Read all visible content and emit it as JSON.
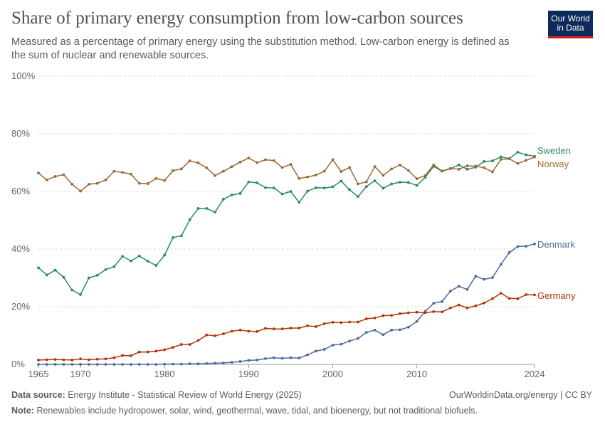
{
  "header": {
    "title": "Share of primary energy consumption from low-carbon sources",
    "subtitle": "Measured as a percentage of primary energy using the substitution method. Low-carbon energy is defined as the sum of nuclear and renewable sources.",
    "logo_line1": "Our World",
    "logo_line2": "in Data"
  },
  "footer": {
    "source_label": "Data source:",
    "source_text": "Energy Institute - Statistical Review of World Energy (2025)",
    "url": "OurWorldinData.org/energy | CC BY",
    "note_label": "Note:",
    "note_text": "Renewables include hydropower, solar, wind, geothermal, wave, tidal, and bioenergy, but not traditional biofuels."
  },
  "chart_data": {
    "type": "line",
    "title": "Share of primary energy consumption from low-carbon sources",
    "xlabel": "",
    "ylabel": "",
    "xlim": [
      1965,
      2024
    ],
    "ylim": [
      0,
      100
    ],
    "x_ticks": [
      1965,
      1970,
      1980,
      1990,
      2000,
      2010,
      2024
    ],
    "y_ticks": [
      0,
      20,
      40,
      60,
      80,
      100
    ],
    "y_tick_labels": [
      "0%",
      "20%",
      "40%",
      "60%",
      "80%",
      "100%"
    ],
    "grid": "horizontal-dashed",
    "legend": "line-end labels",
    "x": [
      1965,
      1966,
      1967,
      1968,
      1969,
      1970,
      1971,
      1972,
      1973,
      1974,
      1975,
      1976,
      1977,
      1978,
      1979,
      1980,
      1981,
      1982,
      1983,
      1984,
      1985,
      1986,
      1987,
      1988,
      1989,
      1990,
      1991,
      1992,
      1993,
      1994,
      1995,
      1996,
      1997,
      1998,
      1999,
      2000,
      2001,
      2002,
      2003,
      2004,
      2005,
      2006,
      2007,
      2008,
      2009,
      2010,
      2011,
      2012,
      2013,
      2014,
      2015,
      2016,
      2017,
      2018,
      2019,
      2020,
      2021,
      2022,
      2023,
      2024
    ],
    "series": [
      {
        "name": "Sweden",
        "color": "#2e8a63",
        "values": [
          33.5,
          31.0,
          32.7,
          30.2,
          25.8,
          24.2,
          30.0,
          30.9,
          32.9,
          33.9,
          37.5,
          35.9,
          37.6,
          35.8,
          34.3,
          37.9,
          44.0,
          44.6,
          50.2,
          54.1,
          54.1,
          52.8,
          57.3,
          58.8,
          59.3,
          63.3,
          63.0,
          61.3,
          61.2,
          59.1,
          60.0,
          56.2,
          60.1,
          61.3,
          61.2,
          61.6,
          63.6,
          60.6,
          58.2,
          61.7,
          63.7,
          61.1,
          62.6,
          63.2,
          63.1,
          62.1,
          64.9,
          68.7,
          67.0,
          67.9,
          69.2,
          67.7,
          68.4,
          70.4,
          70.6,
          72.0,
          71.4,
          73.6,
          72.7,
          72.2
        ]
      },
      {
        "name": "Norway",
        "color": "#9a6a37",
        "values": [
          66.4,
          64.0,
          65.2,
          65.8,
          62.5,
          60.1,
          62.5,
          62.8,
          64.0,
          67.0,
          66.6,
          66.0,
          62.8,
          62.7,
          64.5,
          63.8,
          67.2,
          67.8,
          70.6,
          69.9,
          68.2,
          65.5,
          67.0,
          68.6,
          70.2,
          71.6,
          70.0,
          71.0,
          70.7,
          68.3,
          69.4,
          64.5,
          65.0,
          65.7,
          67.0,
          71.0,
          66.9,
          68.3,
          62.6,
          63.3,
          68.6,
          65.6,
          67.8,
          69.2,
          67.3,
          64.4,
          65.5,
          69.2,
          67.1,
          68.0,
          67.7,
          68.9,
          68.8,
          68.2,
          66.8,
          71.1,
          71.3,
          69.7,
          70.8,
          71.9
        ]
      },
      {
        "name": "Denmark",
        "color": "#4c6a9c",
        "values": [
          0.0,
          0.0,
          0.0,
          0.0,
          0.0,
          0.0,
          0.0,
          0.0,
          0.0,
          0.0,
          0.0,
          0.0,
          0.0,
          0.0,
          0.0,
          0.1,
          0.1,
          0.1,
          0.2,
          0.2,
          0.3,
          0.4,
          0.5,
          0.7,
          1.0,
          1.4,
          1.5,
          2.0,
          2.3,
          2.1,
          2.3,
          2.2,
          3.3,
          4.6,
          5.2,
          6.7,
          7.0,
          8.1,
          9.0,
          11.1,
          11.9,
          10.3,
          11.9,
          12.0,
          12.9,
          14.9,
          18.4,
          21.2,
          21.8,
          25.4,
          27.1,
          26.0,
          30.6,
          29.5,
          30.1,
          34.7,
          38.8,
          40.9,
          41.0,
          41.8
        ]
      },
      {
        "name": "Germany",
        "color": "#b13507",
        "values": [
          1.5,
          1.6,
          1.7,
          1.6,
          1.5,
          1.9,
          1.6,
          1.8,
          1.9,
          2.3,
          3.1,
          3.0,
          4.3,
          4.3,
          4.6,
          5.1,
          5.9,
          6.9,
          6.9,
          8.3,
          10.2,
          9.9,
          10.6,
          11.5,
          11.9,
          11.5,
          11.4,
          12.5,
          12.3,
          12.3,
          12.6,
          12.6,
          13.4,
          13.1,
          14.1,
          14.6,
          14.5,
          14.7,
          14.7,
          15.8,
          16.1,
          16.9,
          17.0,
          17.6,
          17.9,
          18.1,
          17.9,
          18.3,
          18.2,
          19.6,
          20.6,
          19.6,
          20.3,
          21.3,
          22.8,
          24.7,
          22.9,
          22.8,
          24.2,
          24.1
        ]
      }
    ]
  }
}
